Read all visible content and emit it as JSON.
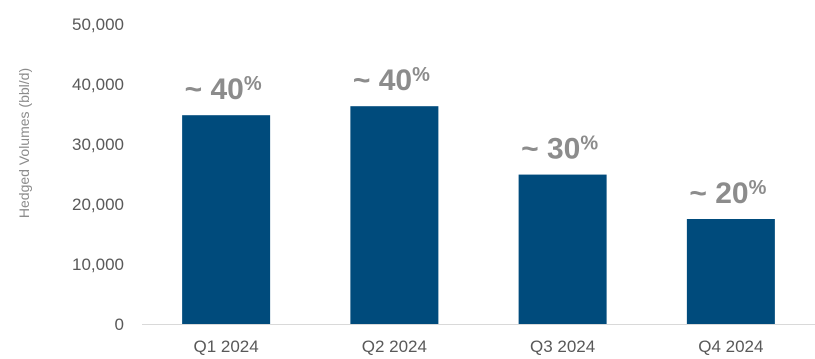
{
  "chart_data": {
    "type": "bar",
    "categories": [
      "Q1 2024",
      "Q2 2024",
      "Q3 2024",
      "Q4 2024"
    ],
    "values": [
      34800,
      36300,
      24900,
      17500
    ],
    "data_labels": [
      {
        "main": "~ 40",
        "suffix": "%"
      },
      {
        "main": "~ 40",
        "suffix": "%"
      },
      {
        "main": "~ 30",
        "suffix": "%"
      },
      {
        "main": "~ 20",
        "suffix": "%"
      }
    ],
    "title": "",
    "xlabel": "",
    "ylabel": "Hedged Volumes (bbl/d)",
    "ylim": [
      0,
      50000
    ],
    "yticks": [
      0,
      10000,
      20000,
      30000,
      40000,
      50000
    ],
    "ytick_labels": [
      "0",
      "10,000",
      "20,000",
      "30,000",
      "40,000",
      "50,000"
    ],
    "grid": false,
    "legend": "none",
    "colors": {
      "bar": "#004b7c",
      "label": "#8c8c8c",
      "tick": "#595959",
      "axis": "#d9d9d9"
    }
  }
}
